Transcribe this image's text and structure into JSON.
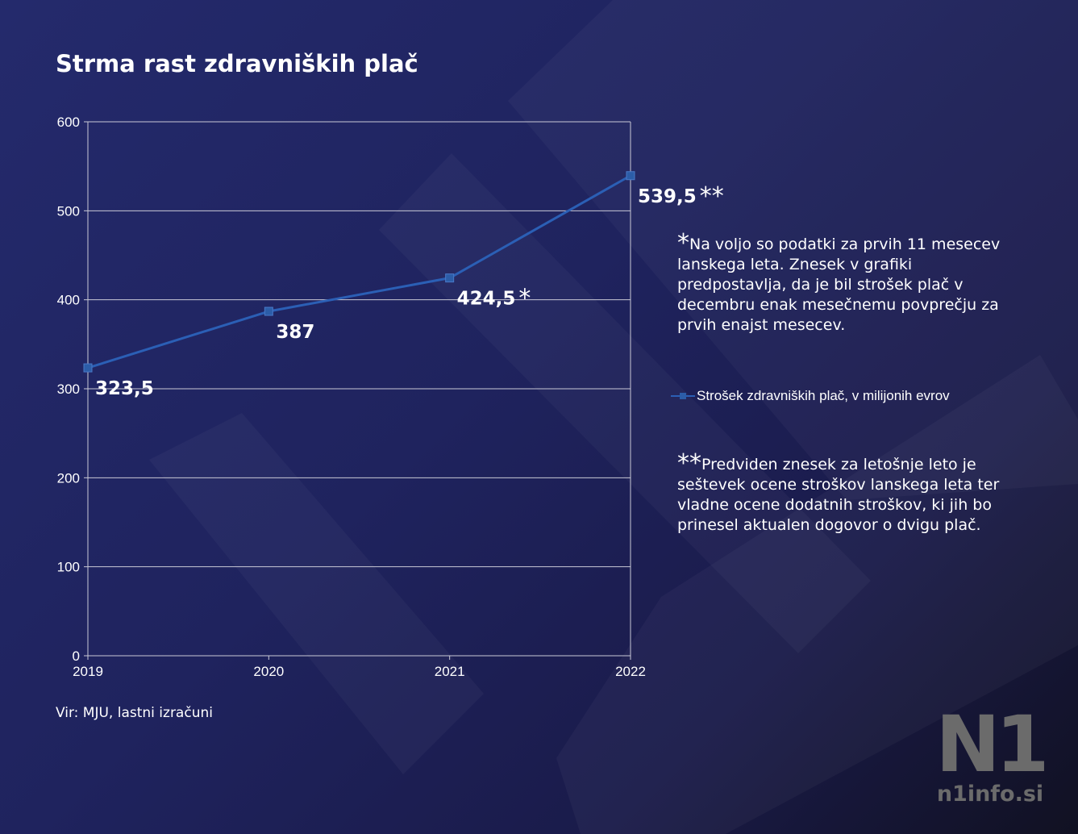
{
  "title": "Strma rast zdravniških plač",
  "source": "Vir: MJU, lastni izračuni",
  "brand": {
    "logo": "N1",
    "url": "n1info.si"
  },
  "notes": [
    {
      "marker": "*",
      "text": "Na voljo so podatki za prvih 11 mesecev lanskega leta. Znesek v grafiki predpostavlja, da je bil strošek plač v decembru enak mesečnemu povprečju za prvih enajst mesecev."
    },
    {
      "marker": "**",
      "text": "Predviden znesek za letošnje leto je seštevek ocene stroškov lanskega leta ter vladne ocene dodatnih stroškov, ki jih bo prinesel aktualen dogovor o dvigu plač."
    }
  ],
  "colors": {
    "line": "#2b5fb5",
    "marker": "#2c5da8",
    "grid": "#c9c9d6"
  },
  "chart_data": {
    "type": "line",
    "title": "Strma rast zdravniških plač",
    "x": [
      "2019",
      "2020",
      "2021",
      "2022"
    ],
    "series": [
      {
        "name": "Strošek zdravniških plač, v milijonih evrov",
        "values": [
          323.5,
          387,
          424.5,
          539.5
        ]
      }
    ],
    "data_labels": [
      "323,5",
      "387",
      "424,5",
      "539,5"
    ],
    "label_markers": [
      "",
      "",
      "*",
      "**"
    ],
    "ylim": [
      0,
      600
    ],
    "yticks": [
      0,
      100,
      200,
      300,
      400,
      500,
      600
    ],
    "xlabel": "",
    "ylabel": "",
    "grid": true,
    "legend_position": "right"
  }
}
